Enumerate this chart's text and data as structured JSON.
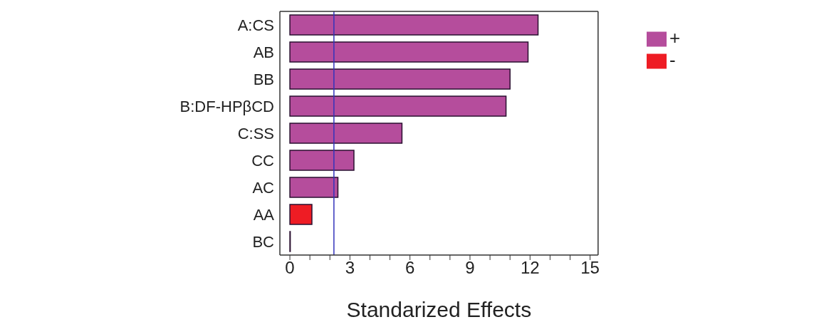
{
  "chart_data": {
    "type": "bar",
    "orientation": "horizontal",
    "stacked": true,
    "xlabel": "Standarized Effects",
    "categories": [
      "A:CS",
      "AB",
      "BB",
      "B:DF-HPβCD",
      "C:SS",
      "CC",
      "AC",
      "AA",
      "BC"
    ],
    "series": [
      {
        "name": "+",
        "color": "#b54d9c",
        "values": [
          12.4,
          11.9,
          11.0,
          10.8,
          5.6,
          3.2,
          2.4,
          null,
          0.02
        ]
      },
      {
        "name": "-",
        "color": "#ee1c24",
        "values": [
          null,
          null,
          null,
          null,
          null,
          null,
          null,
          1.1,
          null
        ]
      }
    ],
    "xlim": [
      -0.5,
      15.4
    ],
    "xticks": [
      0,
      {
        "value": 1,
        "label": null
      },
      {
        "value": 2,
        "label": null
      },
      3,
      {
        "value": 4,
        "label": null
      },
      {
        "value": 5,
        "label": null
      },
      6,
      {
        "value": 7,
        "label": null
      },
      {
        "value": 8,
        "label": null
      },
      9,
      {
        "value": 10,
        "label": null
      },
      {
        "value": 11,
        "label": null
      },
      12,
      {
        "value": 13,
        "label": null
      },
      {
        "value": 14,
        "label": null
      },
      15
    ],
    "ref_lines": [
      {
        "axis": "x",
        "value": 2.2,
        "color": "#3333bb"
      }
    ],
    "legend": "top right"
  }
}
